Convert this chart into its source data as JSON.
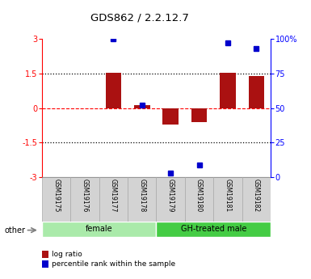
{
  "title": "GDS862 / 2.2.12.7",
  "samples": [
    "GSM19175",
    "GSM19176",
    "GSM19177",
    "GSM19178",
    "GSM19179",
    "GSM19180",
    "GSM19181",
    "GSM19182"
  ],
  "log_ratios": [
    0.0,
    0.0,
    1.55,
    0.12,
    -0.72,
    -0.62,
    1.52,
    1.38
  ],
  "percentile_ranks": [
    null,
    null,
    100,
    52,
    3,
    9,
    97,
    93
  ],
  "groups": [
    {
      "label": "female",
      "start": 0,
      "end": 4,
      "color": "#aaeaaa"
    },
    {
      "label": "GH-treated male",
      "start": 4,
      "end": 8,
      "color": "#44cc44"
    }
  ],
  "ylim": [
    -3,
    3
  ],
  "y_left_ticks": [
    -3,
    -1.5,
    0,
    1.5,
    3
  ],
  "bar_color": "#aa1111",
  "dot_color": "#0000cc",
  "bar_width": 0.55,
  "sample_box_color": "#d3d3d3",
  "sample_box_edge": "#aaaaaa",
  "legend_red_label": "log ratio",
  "legend_blue_label": "percentile rank within the sample",
  "other_label": "other"
}
